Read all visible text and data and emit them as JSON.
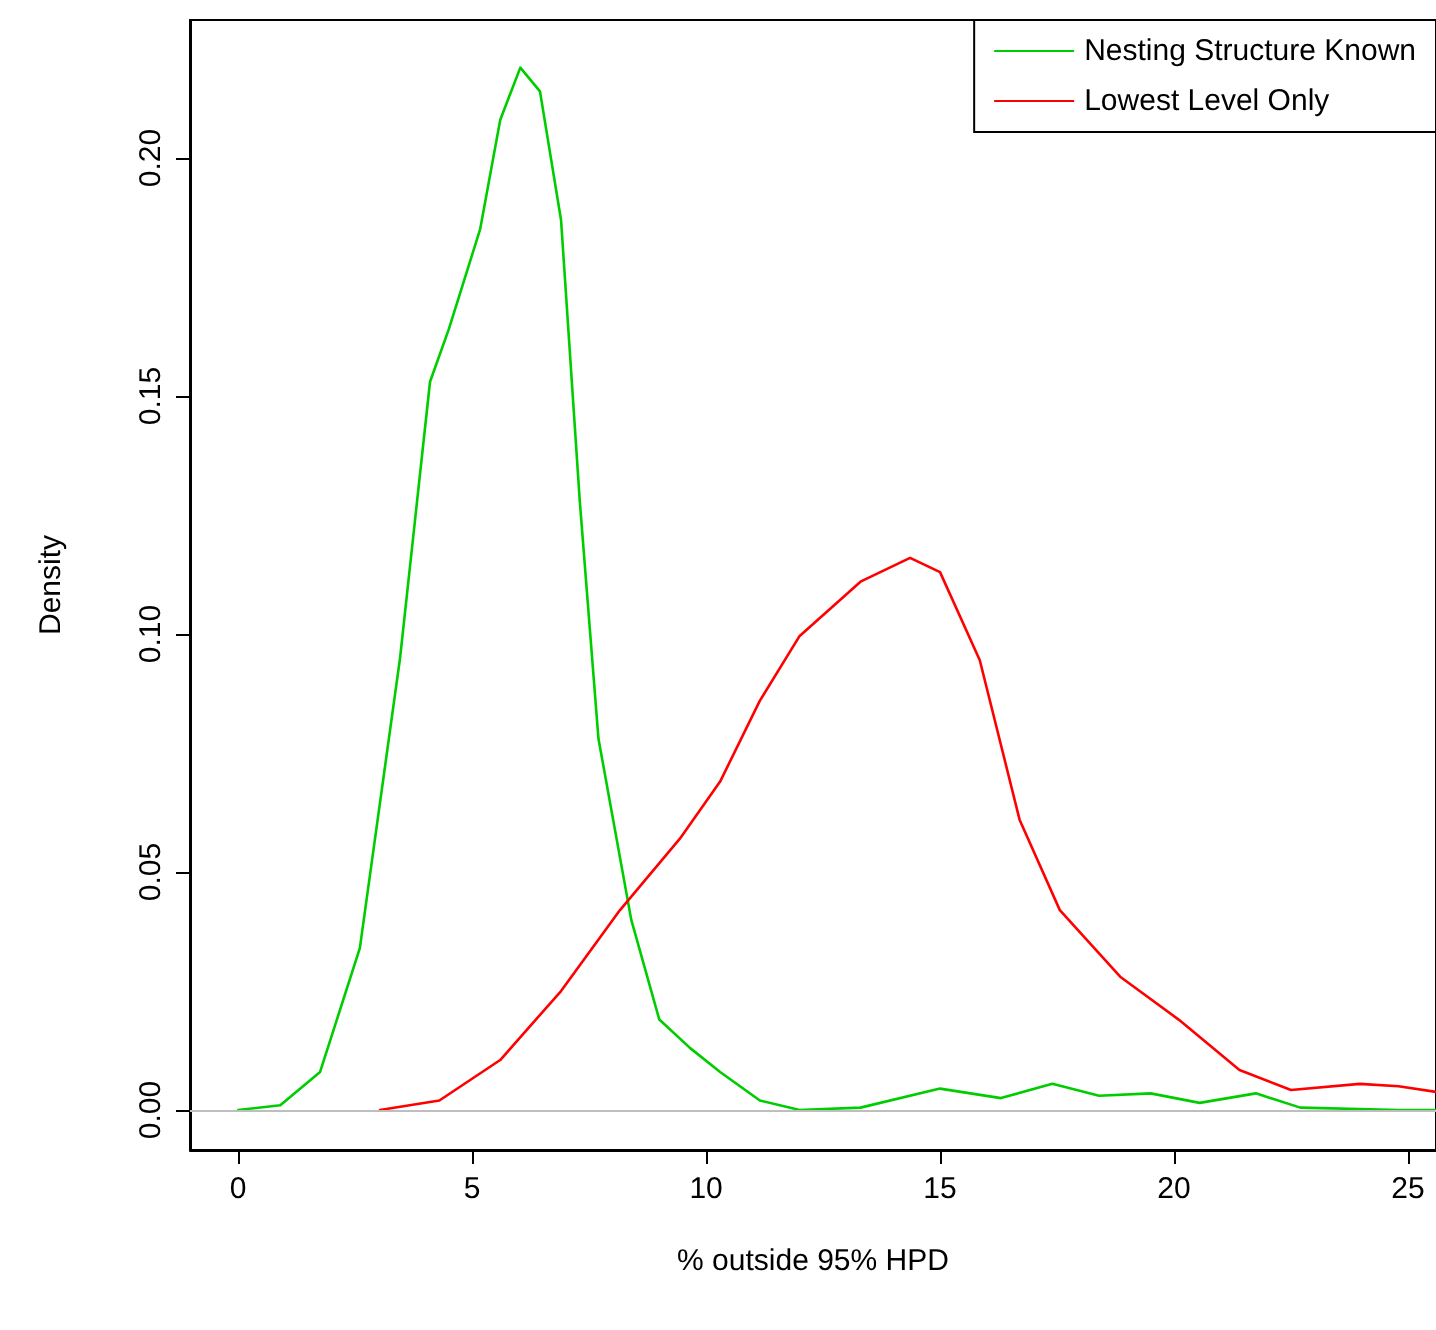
{
  "chart_data": {
    "type": "line",
    "xlabel": "% outside 95% HPD",
    "ylabel": "Density",
    "xlim": [
      -1.03,
      25.6
    ],
    "ylim": [
      -0.0084,
      0.229
    ],
    "xticks": [
      0,
      5,
      10,
      15,
      20,
      25
    ],
    "yticks": [
      {
        "value": 0,
        "label": "0.00"
      },
      {
        "value": 0.05,
        "label": "0.05"
      },
      {
        "value": 0.1,
        "label": "0.10"
      },
      {
        "value": 0.15,
        "label": "0.15"
      },
      {
        "value": 0.2,
        "label": "0.20"
      }
    ],
    "grid": false,
    "legend": "top right",
    "marker": "none",
    "line_style": "solid",
    "ref_lines": [
      {
        "axis": "y",
        "value": 0,
        "color": "#bebebe"
      }
    ],
    "series": [
      {
        "name": "Nesting Structure Known",
        "color": "#00cd00",
        "x": [
          0,
          0.9,
          1.75,
          2.6,
          3.46,
          4.1,
          4.5,
          5.17,
          5.6,
          6.03,
          6.45,
          6.9,
          7.3,
          7.7,
          8.4,
          9.0,
          9.66,
          10.3,
          11.15,
          12.0,
          13.3,
          15.0,
          16.3,
          17.4,
          18.4,
          19.5,
          20.55,
          21.75,
          22.7,
          24.8,
          25.6
        ],
        "values": [
          0,
          0.001,
          0.008,
          0.034,
          0.095,
          0.153,
          0.164,
          0.185,
          0.208,
          0.219,
          0.214,
          0.187,
          0.128,
          0.078,
          0.04,
          0.019,
          0.013,
          0.008,
          0.002,
          0,
          0.0005,
          0.0045,
          0.0025,
          0.0055,
          0.003,
          0.0035,
          0.0015,
          0.0035,
          0.0005,
          0,
          0
        ]
      },
      {
        "name": "Lowest Level Only",
        "color": "#ff0000",
        "x": [
          3.03,
          4.3,
          5.6,
          6.9,
          8.16,
          9.44,
          10.3,
          11.15,
          12.0,
          13.3,
          14.36,
          15.0,
          15.85,
          16.7,
          17.56,
          18.85,
          20.1,
          21.4,
          22.5,
          23.97,
          24.8,
          25.6
        ],
        "values": [
          0,
          0.002,
          0.0105,
          0.025,
          0.042,
          0.057,
          0.069,
          0.086,
          0.0996,
          0.111,
          0.116,
          0.113,
          0.0945,
          0.061,
          0.042,
          0.028,
          0.019,
          0.0084,
          0.0042,
          0.0055,
          0.005,
          0.0038
        ]
      }
    ]
  }
}
